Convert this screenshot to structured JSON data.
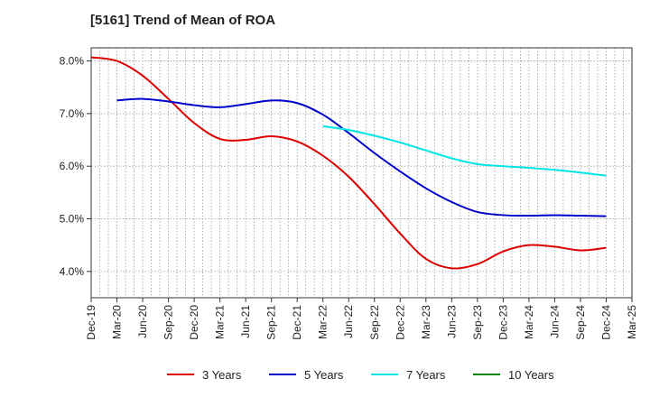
{
  "chart_data": {
    "type": "line",
    "title": "[5161]  Trend of Mean of ROA",
    "xlabel": "",
    "ylabel": "",
    "ylim": [
      3.5,
      8.25
    ],
    "y_ticks": [
      4.0,
      5.0,
      6.0,
      7.0,
      8.0
    ],
    "y_tick_labels": [
      "4.0%",
      "5.0%",
      "6.0%",
      "7.0%",
      "8.0%"
    ],
    "x_tick_labels": [
      "Dec-19",
      "Mar-20",
      "Jun-20",
      "Sep-20",
      "Dec-20",
      "Mar-21",
      "Jun-21",
      "Sep-21",
      "Dec-21",
      "Mar-22",
      "Jun-22",
      "Sep-22",
      "Dec-22",
      "Mar-23",
      "Jun-23",
      "Sep-23",
      "Dec-23",
      "Mar-24",
      "Jun-24",
      "Sep-24",
      "Dec-24",
      "Mar-25"
    ],
    "grid": true,
    "legend_position": "bottom",
    "series": [
      {
        "name": "3 Years",
        "color": "#dd0000",
        "values": [
          8.07,
          8.0,
          7.72,
          7.28,
          6.82,
          6.52,
          6.5,
          6.57,
          6.47,
          6.2,
          5.8,
          5.28,
          4.72,
          4.24,
          4.06,
          4.14,
          4.38,
          4.5,
          4.47,
          4.4,
          4.45,
          null
        ]
      },
      {
        "name": "5 Years",
        "color": "#0000cc",
        "values": [
          null,
          7.25,
          7.28,
          7.23,
          7.16,
          7.12,
          7.18,
          7.25,
          7.2,
          6.98,
          6.63,
          6.25,
          5.9,
          5.58,
          5.32,
          5.13,
          5.07,
          5.06,
          5.07,
          5.06,
          5.05,
          null
        ]
      },
      {
        "name": "7 Years",
        "color": "#00e5e5",
        "values": [
          null,
          null,
          null,
          null,
          null,
          null,
          null,
          null,
          null,
          6.76,
          6.69,
          6.58,
          6.45,
          6.3,
          6.15,
          6.04,
          6.0,
          5.97,
          5.93,
          5.88,
          5.82,
          null
        ]
      },
      {
        "name": "10 Years",
        "color": "#008800",
        "values": [
          null,
          null,
          null,
          null,
          null,
          null,
          null,
          null,
          null,
          null,
          null,
          null,
          null,
          null,
          null,
          null,
          null,
          null,
          null,
          null,
          null,
          null
        ]
      }
    ]
  }
}
